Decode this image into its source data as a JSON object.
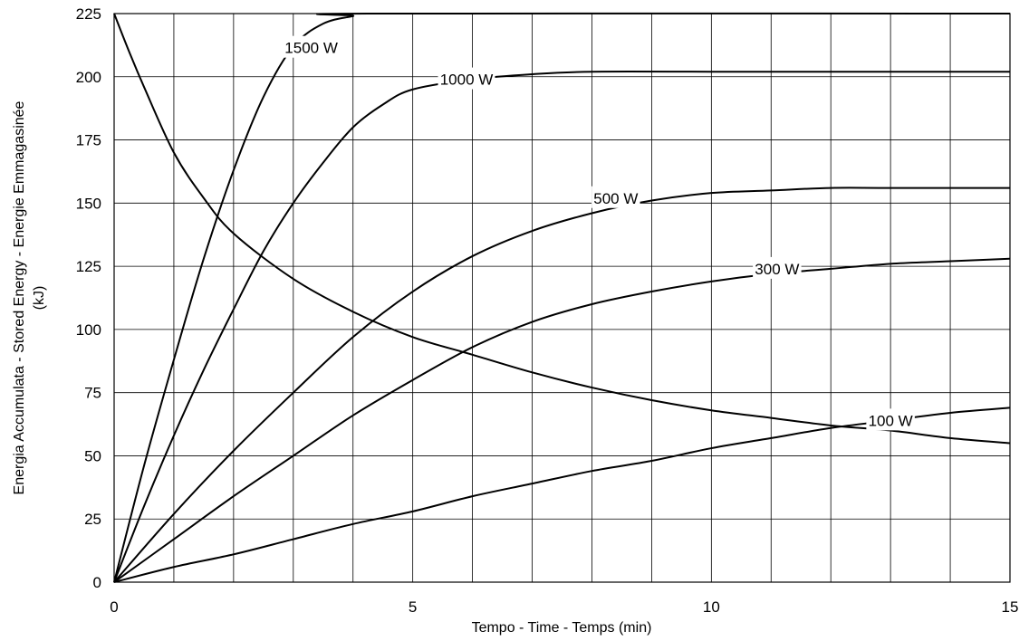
{
  "chart_data": {
    "type": "line",
    "title": "",
    "xlabel": "Tempo - Time - Temps   (min)",
    "ylabel": "Energia Accumulata - Stored Energy - Energie Emmagasinée",
    "ylabel_unit": "(kJ)",
    "xlim": [
      0,
      15
    ],
    "ylim": [
      0,
      225
    ],
    "x_ticks": [
      0,
      5,
      10,
      15
    ],
    "y_ticks": [
      0,
      25,
      50,
      75,
      100,
      125,
      150,
      175,
      200,
      225
    ],
    "x_minor_grid_step": 1,
    "grid": true,
    "series": [
      {
        "name": "1500 W",
        "x": [
          0,
          0.5,
          1,
          1.5,
          2,
          2.5,
          3,
          3.5,
          4,
          4.25,
          15
        ],
        "y": [
          0,
          46,
          88,
          128,
          163,
          192,
          212,
          221,
          224,
          225,
          225
        ]
      },
      {
        "name": "1000 W",
        "x": [
          0,
          0.5,
          1,
          1.5,
          2,
          2.5,
          3,
          3.5,
          4,
          4.5,
          5,
          6,
          7,
          8,
          10,
          12,
          15
        ],
        "y": [
          0,
          30,
          58,
          84,
          108,
          131,
          150,
          166,
          180,
          189,
          195,
          199,
          201,
          202,
          202,
          202,
          202
        ]
      },
      {
        "name": "500 W",
        "x": [
          0,
          1,
          2,
          3,
          4,
          5,
          6,
          7,
          8,
          9,
          10,
          11,
          12,
          13,
          15
        ],
        "y": [
          0,
          27,
          52,
          75,
          97,
          115,
          129,
          139,
          146,
          151,
          154,
          155,
          156,
          156,
          156
        ]
      },
      {
        "name": "300 W",
        "x": [
          0,
          1,
          2,
          3,
          4,
          5,
          6,
          7,
          8,
          9,
          10,
          11,
          12,
          13,
          14,
          15
        ],
        "y": [
          0,
          17,
          34,
          50,
          66,
          80,
          93,
          103,
          110,
          115,
          119,
          122,
          124,
          126,
          127,
          128
        ]
      },
      {
        "name": "100 W",
        "x": [
          0,
          1,
          2,
          3,
          4,
          5,
          6,
          7,
          8,
          9,
          10,
          11,
          12,
          13,
          14,
          15
        ],
        "y": [
          0,
          6,
          11,
          17,
          23,
          28,
          34,
          39,
          44,
          48,
          53,
          57,
          61,
          64,
          67,
          69
        ]
      },
      {
        "name": "",
        "x": [
          0,
          0.25,
          0.5,
          1,
          1.5,
          2,
          3,
          4,
          5,
          6,
          7,
          8,
          9,
          10,
          11,
          12,
          13,
          14,
          15
        ],
        "y": [
          225,
          210,
          196,
          170,
          152,
          138,
          120,
          107,
          97,
          90,
          83,
          77,
          72,
          68,
          65,
          62,
          60,
          57,
          55
        ]
      }
    ],
    "labels": [
      {
        "text": "1500 W",
        "x": 3.3,
        "y": 211.5
      },
      {
        "text": "1000 W",
        "x": 5.9,
        "y": 199
      },
      {
        "text": "500 W",
        "x": 8.4,
        "y": 152
      },
      {
        "text": "300 W",
        "x": 11.1,
        "y": 124
      },
      {
        "text": "100 W",
        "x": 13.0,
        "y": 64
      }
    ]
  }
}
